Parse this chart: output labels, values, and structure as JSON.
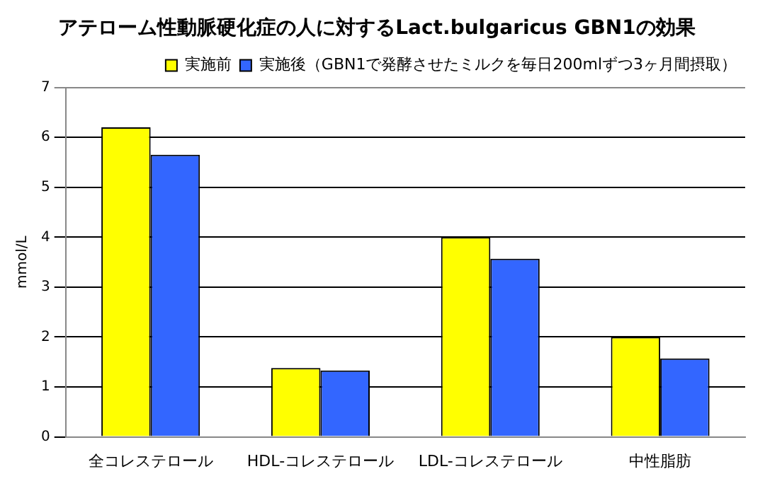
{
  "chart_data": {
    "type": "bar",
    "title": "アテローム性動脈硬化症の人に対するLact.bulgaricus GBN1の効果",
    "ylabel": "mmol/L",
    "categories": [
      "全コレステロール",
      "HDL-コレステロール",
      "LDL-コレステロール",
      "中性脂肪"
    ],
    "series": [
      {
        "name": "実施前",
        "color": "#ffff00",
        "values": [
          6.2,
          1.38,
          4.0,
          2.0
        ]
      },
      {
        "name": "実施後（GBN1で発酵させたミルクを毎日200mlずつ3ヶ月間摂取）",
        "color": "#3366ff",
        "values": [
          5.65,
          1.33,
          3.57,
          1.57
        ]
      }
    ],
    "ylim": [
      0,
      7
    ],
    "yticks": [
      0,
      1,
      2,
      3,
      4,
      5,
      6,
      7
    ],
    "grid": "y",
    "legend": "top"
  }
}
